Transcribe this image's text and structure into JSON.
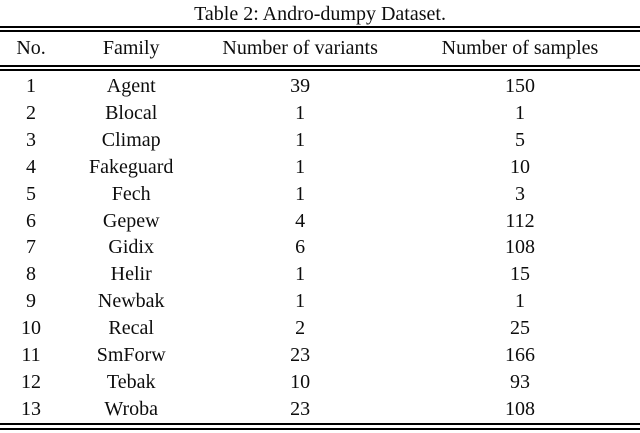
{
  "figure": {
    "caption": "Table 2: Andro-dumpy Dataset."
  },
  "table": {
    "columns": [
      "No.",
      "Family",
      "Number of variants",
      "Number of samples"
    ],
    "rows": [
      [
        "1",
        "Agent",
        "39",
        "150"
      ],
      [
        "2",
        "Blocal",
        "1",
        "1"
      ],
      [
        "3",
        "Climap",
        "1",
        "5"
      ],
      [
        "4",
        "Fakeguard",
        "1",
        "10"
      ],
      [
        "5",
        "Fech",
        "1",
        "3"
      ],
      [
        "6",
        "Gepew",
        "4",
        "112"
      ],
      [
        "7",
        "Gidix",
        "6",
        "108"
      ],
      [
        "8",
        "Helir",
        "1",
        "15"
      ],
      [
        "9",
        "Newbak",
        "1",
        "1"
      ],
      [
        "10",
        "Recal",
        "2",
        "25"
      ],
      [
        "11",
        "SmForw",
        "23",
        "166"
      ],
      [
        "12",
        "Tebak",
        "10",
        "93"
      ],
      [
        "13",
        "Wroba",
        "23",
        "108"
      ]
    ]
  },
  "colors": {
    "text": "#0d0d0d",
    "rule": "#000000",
    "background": "#ffffff"
  }
}
